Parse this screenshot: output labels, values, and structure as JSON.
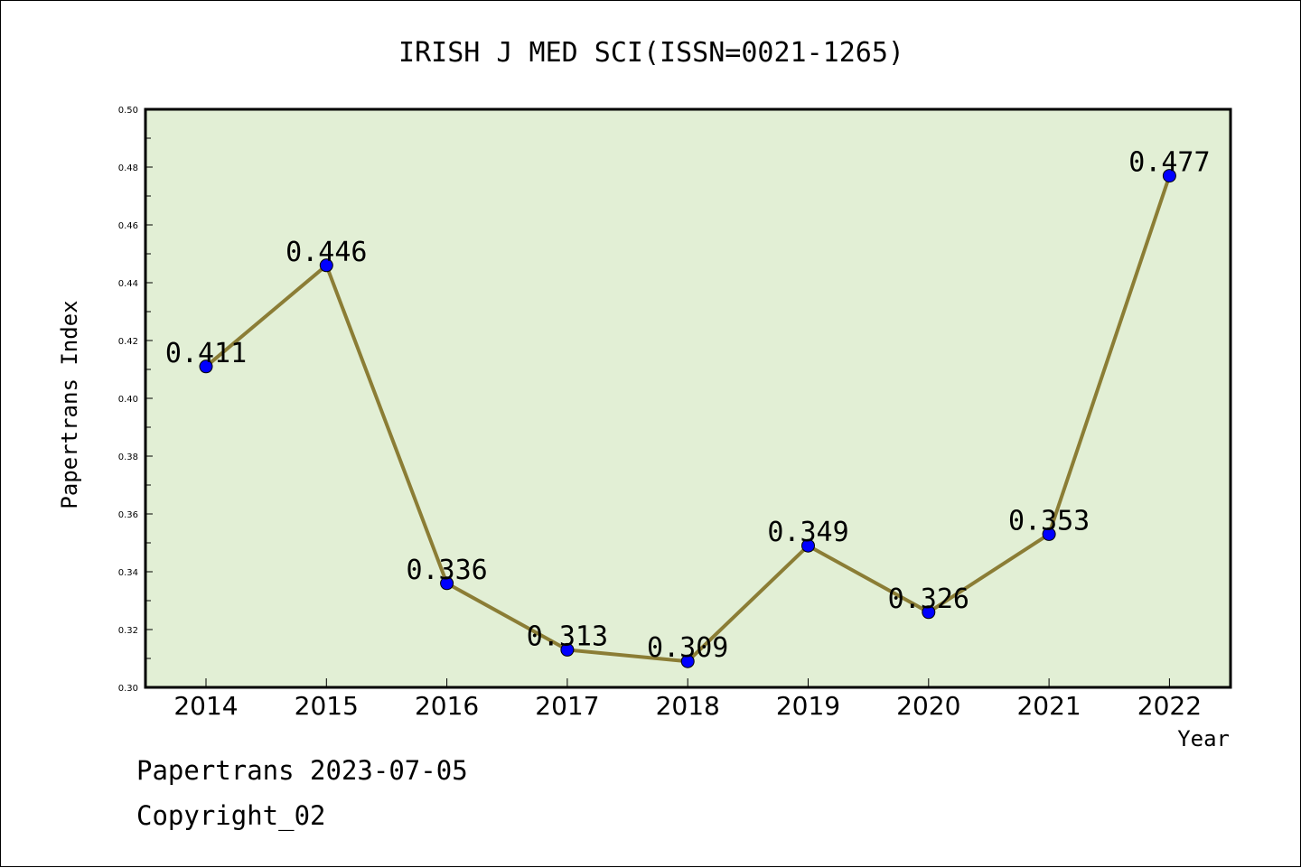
{
  "colors": {
    "plot_background": "#e2efd5",
    "line": "#8b7d35",
    "marker": "#0000ff",
    "frame": "#000000"
  },
  "footer": {
    "date": "Papertrans 2023-07-05",
    "copyright": "Copyright_02"
  },
  "chart_data": {
    "type": "line",
    "title": "IRISH J MED SCI(ISSN=0021-1265)",
    "xlabel": "Year",
    "ylabel": "Papertrans Index",
    "categories": [
      "2014",
      "2015",
      "2016",
      "2017",
      "2018",
      "2019",
      "2020",
      "2021",
      "2022"
    ],
    "series": [
      {
        "values": [
          0.411,
          0.446,
          0.336,
          0.313,
          0.309,
          0.349,
          0.326,
          0.353,
          0.477
        ],
        "labels": [
          "0.411",
          "0.446",
          "0.336",
          "0.313",
          "0.309",
          "0.349",
          "0.326",
          "0.353",
          "0.477"
        ]
      }
    ],
    "ylim": [
      0.3,
      0.5
    ],
    "yticks": [
      "0.30",
      "0.32",
      "0.34",
      "0.36",
      "0.38",
      "0.40",
      "0.42",
      "0.44",
      "0.46",
      "0.48",
      "0.50"
    ],
    "grid": false,
    "legend": "none"
  }
}
